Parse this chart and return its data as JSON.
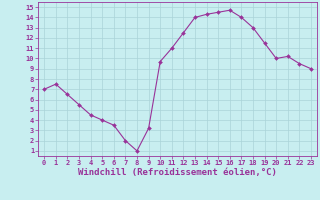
{
  "x": [
    0,
    1,
    2,
    3,
    4,
    5,
    6,
    7,
    8,
    9,
    10,
    11,
    12,
    13,
    14,
    15,
    16,
    17,
    18,
    19,
    20,
    21,
    22,
    23
  ],
  "y": [
    7.0,
    7.5,
    6.5,
    5.5,
    4.5,
    4.0,
    3.5,
    2.0,
    1.0,
    3.2,
    9.7,
    11.0,
    12.5,
    14.0,
    14.3,
    14.5,
    14.7,
    14.0,
    13.0,
    11.5,
    10.0,
    10.2,
    9.5,
    9.0
  ],
  "line_color": "#993399",
  "marker": "D",
  "markersize": 2.0,
  "linewidth": 0.8,
  "background_color": "#c8eef0",
  "grid_color": "#aad4d8",
  "xlabel": "Windchill (Refroidissement éolien,°C)",
  "xlabel_color": "#993399",
  "tick_color": "#993399",
  "label_color": "#993399",
  "ylim": [
    0.5,
    15.5
  ],
  "xlim": [
    -0.5,
    23.5
  ],
  "yticks": [
    1,
    2,
    3,
    4,
    5,
    6,
    7,
    8,
    9,
    10,
    11,
    12,
    13,
    14,
    15
  ],
  "xticks": [
    0,
    1,
    2,
    3,
    4,
    5,
    6,
    7,
    8,
    9,
    10,
    11,
    12,
    13,
    14,
    15,
    16,
    17,
    18,
    19,
    20,
    21,
    22,
    23
  ],
  "tick_fontsize": 5.0,
  "xlabel_fontsize": 6.5,
  "figsize": [
    3.2,
    2.0
  ],
  "dpi": 100
}
